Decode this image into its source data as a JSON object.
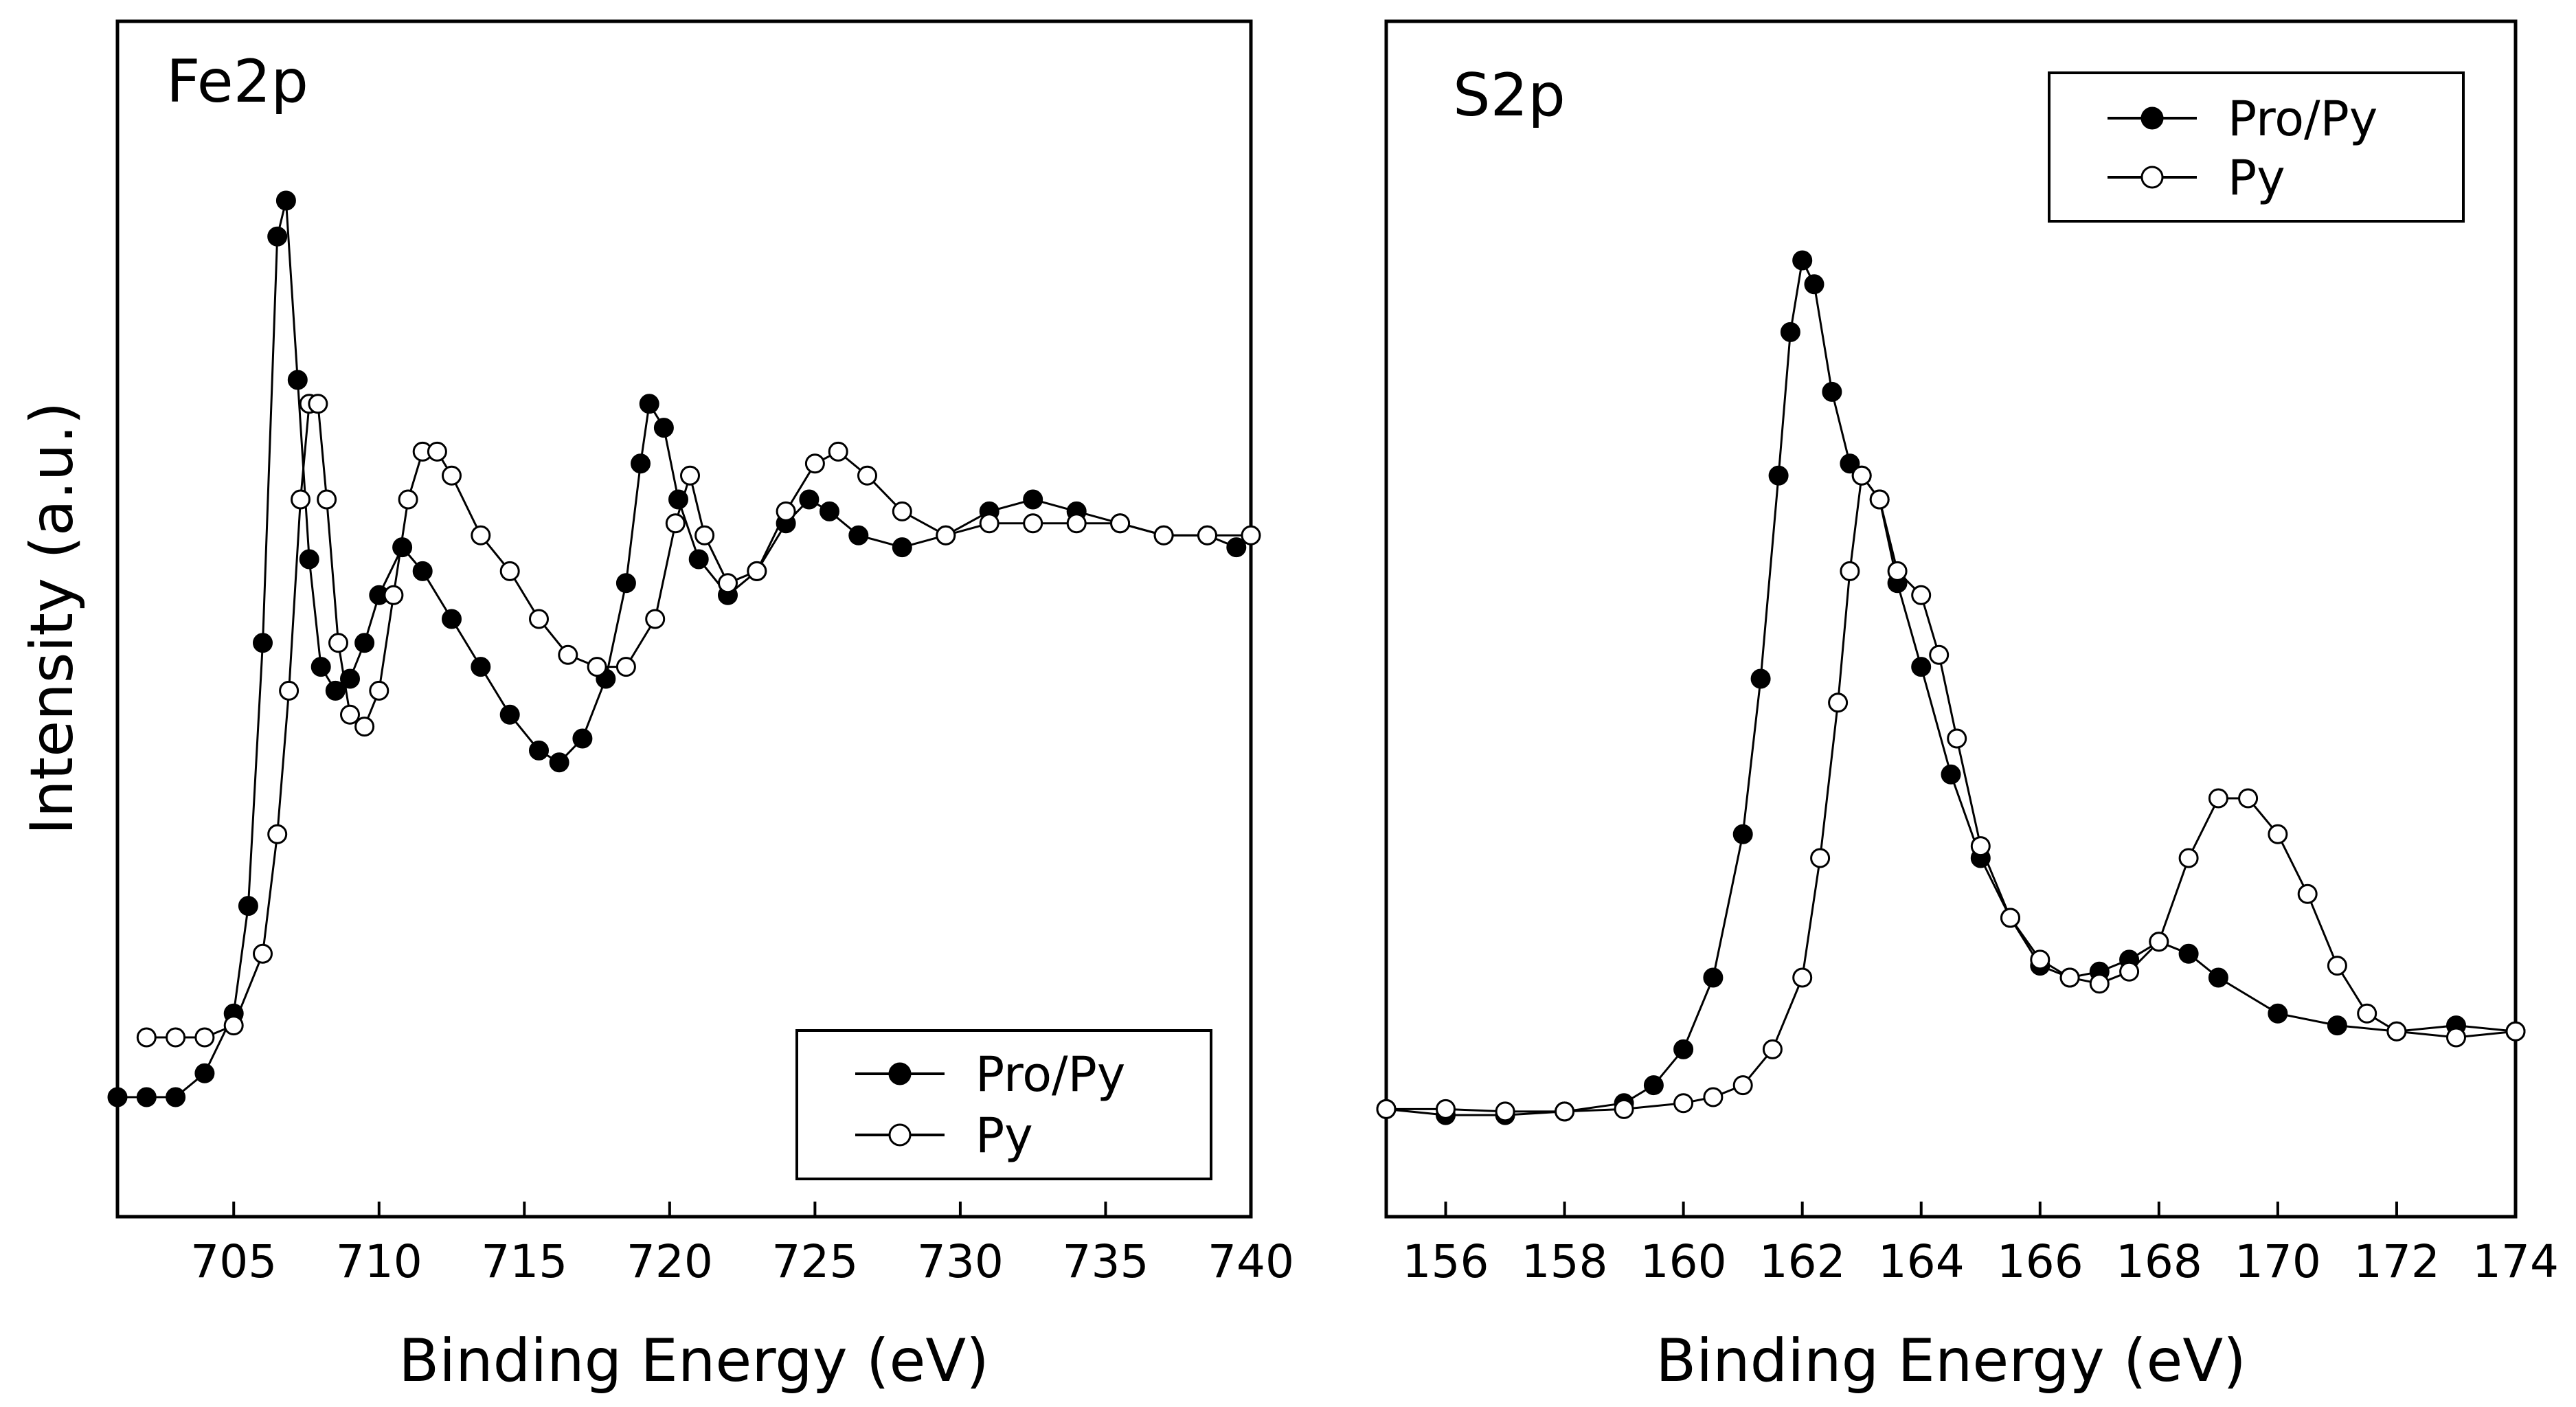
{
  "chart_data": [
    {
      "type": "line",
      "title": "",
      "panel_label": "Fe2p",
      "xlabel": "Binding Energy (eV)",
      "ylabel": "Intensity (a.u.)",
      "xlim": [
        701,
        740
      ],
      "ylim": [
        0,
        100
      ],
      "xticks": [
        705,
        710,
        715,
        720,
        725,
        730,
        735,
        740
      ],
      "grid": false,
      "legend_position": "bottom-right",
      "series": [
        {
          "name": "Pro/Py",
          "marker": "filled-circle",
          "points": [
            [
              701,
              10
            ],
            [
              702,
              10
            ],
            [
              703,
              10
            ],
            [
              704,
              12
            ],
            [
              705,
              17
            ],
            [
              705.5,
              26
            ],
            [
              706,
              48
            ],
            [
              706.5,
              82
            ],
            [
              706.8,
              85
            ],
            [
              707.2,
              70
            ],
            [
              707.6,
              55
            ],
            [
              708,
              46
            ],
            [
              708.5,
              44
            ],
            [
              709,
              45
            ],
            [
              709.5,
              48
            ],
            [
              710,
              52
            ],
            [
              710.8,
              56
            ],
            [
              711.5,
              54
            ],
            [
              712.5,
              50
            ],
            [
              713.5,
              46
            ],
            [
              714.5,
              42
            ],
            [
              715.5,
              39
            ],
            [
              716.2,
              38
            ],
            [
              717,
              40
            ],
            [
              717.8,
              45
            ],
            [
              718.5,
              53
            ],
            [
              719,
              63
            ],
            [
              719.3,
              68
            ],
            [
              719.8,
              66
            ],
            [
              720.3,
              60
            ],
            [
              721,
              55
            ],
            [
              722,
              52
            ],
            [
              723,
              54
            ],
            [
              724,
              58
            ],
            [
              724.8,
              60
            ],
            [
              725.5,
              59
            ],
            [
              726.5,
              57
            ],
            [
              728,
              56
            ],
            [
              729.5,
              57
            ],
            [
              731,
              59
            ],
            [
              732.5,
              60
            ],
            [
              734,
              59
            ],
            [
              735.5,
              58
            ],
            [
              737,
              57
            ],
            [
              738.5,
              57
            ],
            [
              739.5,
              56
            ]
          ]
        },
        {
          "name": "Py",
          "marker": "open-circle",
          "points": [
            [
              702,
              15
            ],
            [
              703,
              15
            ],
            [
              704,
              15
            ],
            [
              705,
              16
            ],
            [
              706,
              22
            ],
            [
              706.5,
              32
            ],
            [
              706.9,
              44
            ],
            [
              707.3,
              60
            ],
            [
              707.6,
              68
            ],
            [
              707.9,
              68
            ],
            [
              708.2,
              60
            ],
            [
              708.6,
              48
            ],
            [
              709,
              42
            ],
            [
              709.5,
              41
            ],
            [
              710,
              44
            ],
            [
              710.5,
              52
            ],
            [
              711,
              60
            ],
            [
              711.5,
              64
            ],
            [
              712,
              64
            ],
            [
              712.5,
              62
            ],
            [
              713.5,
              57
            ],
            [
              714.5,
              54
            ],
            [
              715.5,
              50
            ],
            [
              716.5,
              47
            ],
            [
              717.5,
              46
            ],
            [
              718.5,
              46
            ],
            [
              719.5,
              50
            ],
            [
              720.2,
              58
            ],
            [
              720.7,
              62
            ],
            [
              721.2,
              57
            ],
            [
              722,
              53
            ],
            [
              723,
              54
            ],
            [
              724,
              59
            ],
            [
              725,
              63
            ],
            [
              725.8,
              64
            ],
            [
              726.8,
              62
            ],
            [
              728,
              59
            ],
            [
              729.5,
              57
            ],
            [
              731,
              58
            ],
            [
              732.5,
              58
            ],
            [
              734,
              58
            ],
            [
              735.5,
              58
            ],
            [
              737,
              57
            ],
            [
              738.5,
              57
            ],
            [
              740,
              57
            ]
          ]
        }
      ]
    },
    {
      "type": "line",
      "title": "",
      "panel_label": "S2p",
      "xlabel": "Binding Energy (eV)",
      "ylabel": "",
      "xlim": [
        155,
        174
      ],
      "ylim": [
        0,
        100
      ],
      "xticks": [
        156,
        158,
        160,
        162,
        164,
        166,
        168,
        170,
        172,
        174
      ],
      "grid": false,
      "legend_position": "top-right",
      "series": [
        {
          "name": "Pro/Py",
          "marker": "filled-circle",
          "points": [
            [
              155,
              9
            ],
            [
              156,
              8.5
            ],
            [
              157,
              8.5
            ],
            [
              158,
              8.8
            ],
            [
              159,
              9.5
            ],
            [
              159.5,
              11
            ],
            [
              160,
              14
            ],
            [
              160.5,
              20
            ],
            [
              161,
              32
            ],
            [
              161.3,
              45
            ],
            [
              161.6,
              62
            ],
            [
              161.8,
              74
            ],
            [
              162,
              80
            ],
            [
              162.2,
              78
            ],
            [
              162.5,
              69
            ],
            [
              162.8,
              63
            ],
            [
              163,
              62
            ],
            [
              163.3,
              60
            ],
            [
              163.6,
              53
            ],
            [
              164,
              46
            ],
            [
              164.5,
              37
            ],
            [
              165,
              30
            ],
            [
              165.5,
              25
            ],
            [
              166,
              21
            ],
            [
              166.5,
              20
            ],
            [
              167,
              20.5
            ],
            [
              167.5,
              21.5
            ],
            [
              168,
              23
            ],
            [
              168.5,
              22
            ],
            [
              169,
              20
            ],
            [
              170,
              17
            ],
            [
              171,
              16
            ],
            [
              172,
              15.5
            ],
            [
              173,
              16
            ],
            [
              174,
              15.5
            ]
          ]
        },
        {
          "name": "Py",
          "marker": "open-circle",
          "points": [
            [
              155,
              9
            ],
            [
              156,
              9
            ],
            [
              157,
              8.8
            ],
            [
              158,
              8.8
            ],
            [
              159,
              9
            ],
            [
              160,
              9.5
            ],
            [
              160.5,
              10
            ],
            [
              161,
              11
            ],
            [
              161.5,
              14
            ],
            [
              162,
              20
            ],
            [
              162.3,
              30
            ],
            [
              162.6,
              43
            ],
            [
              162.8,
              54
            ],
            [
              163,
              62
            ],
            [
              163.3,
              60
            ],
            [
              163.6,
              54
            ],
            [
              164,
              52
            ],
            [
              164.3,
              47
            ],
            [
              164.6,
              40
            ],
            [
              165,
              31
            ],
            [
              165.5,
              25
            ],
            [
              166,
              21.5
            ],
            [
              166.5,
              20
            ],
            [
              167,
              19.5
            ],
            [
              167.5,
              20.5
            ],
            [
              168,
              23
            ],
            [
              168.5,
              30
            ],
            [
              169,
              35
            ],
            [
              169.5,
              35
            ],
            [
              170,
              32
            ],
            [
              170.5,
              27
            ],
            [
              171,
              21
            ],
            [
              171.5,
              17
            ],
            [
              172,
              15.5
            ],
            [
              173,
              15
            ],
            [
              174,
              15.5
            ]
          ]
        }
      ]
    }
  ]
}
